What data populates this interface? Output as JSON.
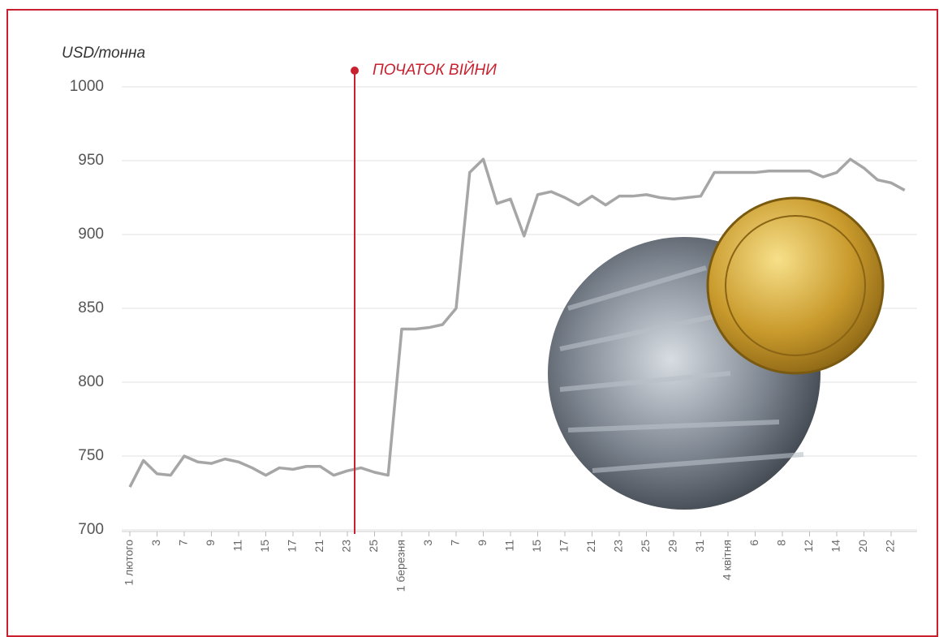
{
  "chart_data": {
    "type": "line",
    "y_label": "USD/тонна",
    "annotation": "ПОЧАТОК ВІЙНИ",
    "categories": [
      "1 лютого",
      null,
      "3",
      null,
      "7",
      null,
      "9",
      null,
      "11",
      null,
      "15",
      null,
      "17",
      null,
      "21",
      null,
      "23",
      null,
      "25",
      null,
      "1 березня",
      null,
      "3",
      null,
      "7",
      null,
      "9",
      null,
      "11",
      null,
      "15",
      null,
      "17",
      null,
      "21",
      null,
      "23",
      null,
      "25",
      null,
      "29",
      null,
      "31",
      null,
      "4 квітня",
      null,
      "6",
      null,
      "8",
      null,
      "12",
      null,
      "14",
      null,
      "20",
      null,
      "22",
      null
    ],
    "values": [
      729,
      747,
      738,
      737,
      750,
      746,
      745,
      748,
      746,
      742,
      737,
      742,
      741,
      743,
      743,
      737,
      740,
      742,
      739,
      737,
      836,
      836,
      837,
      839,
      850,
      942,
      951,
      921,
      924,
      899,
      927,
      929,
      925,
      920,
      926,
      920,
      926,
      926,
      927,
      925,
      924,
      925,
      926,
      942,
      942,
      942,
      942,
      943,
      943,
      943,
      943,
      939,
      942,
      951,
      945,
      937,
      935,
      930
    ],
    "color": "#a6a6a6",
    "annotation_color": "#c8202f",
    "ylim": [
      700,
      1000
    ],
    "yticks": [
      700,
      750,
      800,
      850,
      900,
      950,
      1000
    ],
    "grid": true
  }
}
